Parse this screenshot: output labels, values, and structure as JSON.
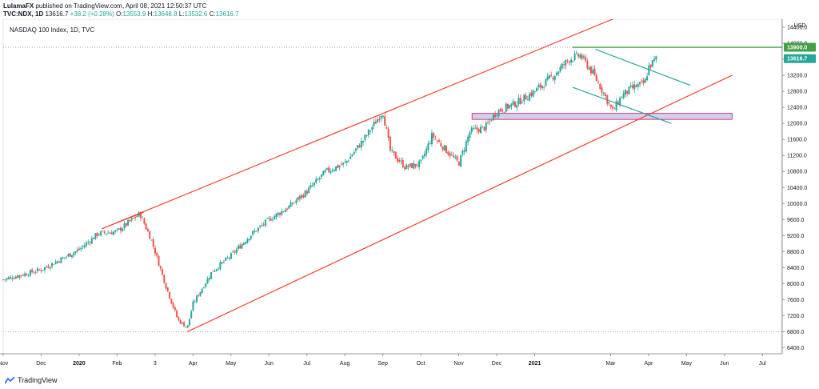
{
  "publish_line": {
    "author": "LulamaFX",
    "text": " published on TradingView.com, April 08, 2021 12:50:37 UTC"
  },
  "ohlc_line": {
    "symbol": "TVC:NDX, 1D",
    "last": "13616.7",
    "change": "+38.2 (+0.28%)",
    "o_label": "O:",
    "o": "13553.9",
    "h_label": "H:",
    "h": "13648.8",
    "l_label": "L:",
    "l": "13532.6",
    "c_label": "C:",
    "c": "13616.7"
  },
  "footer": {
    "brand": "TradingView"
  },
  "colors": {
    "up": "#26a69a",
    "down": "#ef5350",
    "channel": "#f44336",
    "wedge": "#26a69a",
    "resistance": "#43a047",
    "zone_fill": "#d1c4e9",
    "zone_stroke": "#c2185b"
  },
  "chart_data": {
    "type": "candlestick",
    "title": "NASDAQ 100 Index, 1D, TVC",
    "currency": "USD",
    "y_ticks": [
      6400,
      6800,
      7200,
      7600,
      8000,
      8400,
      8800,
      9200,
      9600,
      10000,
      10400,
      10800,
      11200,
      11600,
      12000,
      12400,
      12800,
      13200,
      13600,
      14000,
      14400
    ],
    "y_tick_labels": [
      "6400.0",
      "6800.0",
      "7200.0",
      "7600.0",
      "8000.0",
      "8400.0",
      "8800.0",
      "9200.0",
      "9600.0",
      "10000.0",
      "10400.0",
      "10800.0",
      "11200.0",
      "11600.0",
      "12000.0",
      "12400.0",
      "12800.0",
      "13200.0",
      "13600.0",
      "14000.0",
      "14400.0"
    ],
    "ylim": [
      6250,
      14600
    ],
    "x_labels": [
      "Nov",
      "Dec",
      "2020",
      "Feb",
      "3",
      "Apr",
      "May",
      "Jun",
      "Jul",
      "Aug",
      "Sep",
      "Oct",
      "Nov",
      "Dec",
      "2021",
      "Mar",
      "Apr",
      "May",
      "Jun",
      "Jul"
    ],
    "x_label_months": [
      0,
      1,
      2,
      3,
      4,
      5,
      6,
      7,
      8,
      9,
      10,
      11,
      12,
      13,
      14,
      16,
      17,
      18,
      19,
      20
    ],
    "x_range_months": [
      0,
      20.5
    ],
    "price_path": [
      [
        0,
        8100
      ],
      [
        1,
        8350
      ],
      [
        2,
        8850
      ],
      [
        2.5,
        9250
      ],
      [
        3,
        9300
      ],
      [
        3.6,
        9750
      ],
      [
        3.9,
        9100
      ],
      [
        4.3,
        7900
      ],
      [
        4.6,
        7100
      ],
      [
        4.85,
        6900
      ],
      [
        5,
        7500
      ],
      [
        5.5,
        8300
      ],
      [
        6,
        8700
      ],
      [
        6.5,
        9200
      ],
      [
        7,
        9600
      ],
      [
        7.5,
        9900
      ],
      [
        8,
        10300
      ],
      [
        8.5,
        10800
      ],
      [
        9,
        11000
      ],
      [
        9.5,
        11600
      ],
      [
        10,
        12300
      ],
      [
        10.2,
        11300
      ],
      [
        10.6,
        10900
      ],
      [
        11,
        11000
      ],
      [
        11.3,
        11700
      ],
      [
        11.7,
        11300
      ],
      [
        12,
        11000
      ],
      [
        12.3,
        11800
      ],
      [
        12.7,
        11900
      ],
      [
        13,
        12300
      ],
      [
        13.5,
        12500
      ],
      [
        14,
        12800
      ],
      [
        14.5,
        13200
      ],
      [
        14.9,
        13600
      ],
      [
        15.2,
        13700
      ],
      [
        15.5,
        13300
      ],
      [
        15.8,
        12800
      ],
      [
        16.05,
        12300
      ],
      [
        16.3,
        12700
      ],
      [
        16.6,
        12900
      ],
      [
        16.9,
        13000
      ],
      [
        17.0,
        13400
      ],
      [
        17.2,
        13616.7
      ]
    ],
    "channel_upper": [
      [
        2.6,
        9370
      ],
      [
        16.95,
        14950
      ]
    ],
    "channel_lower": [
      [
        4.85,
        6800
      ],
      [
        19.2,
        13200
      ]
    ],
    "upper_touch_line": [
      [
        2.6,
        9370
      ],
      [
        3.7,
        9780
      ]
    ],
    "wedge_upper": [
      [
        15.6,
        13850
      ],
      [
        18.1,
        12950
      ]
    ],
    "wedge_lower": [
      [
        15.0,
        12900
      ],
      [
        17.6,
        12000
      ]
    ],
    "resistance_level": 13900.0,
    "resistance_label": "13900.0",
    "resistance_start_month": 15.0,
    "last_price_label": "13616.7",
    "last_price_value": 13616.7,
    "zone": {
      "from_month": 12.35,
      "to_month": 19.2,
      "low": 12100,
      "high": 12250
    },
    "dotted_levels": [
      13900,
      6800
    ]
  }
}
